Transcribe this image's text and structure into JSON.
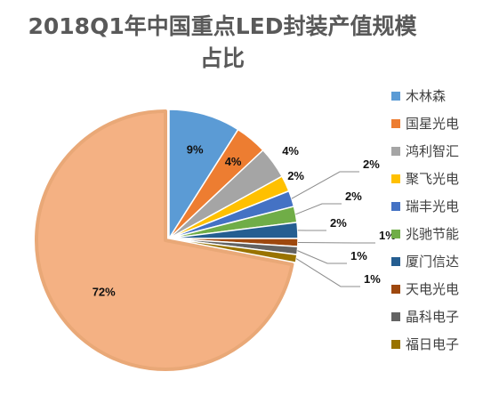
{
  "chart_data": {
    "type": "pie",
    "title": "2018Q1年中国重点LED封装产值规模占比",
    "title_lines": [
      "2018Q1年中国重点LED封装产值规模",
      "占比"
    ],
    "unit": "%",
    "legend_position": "right",
    "slices": [
      {
        "name": "木林森",
        "value": 9,
        "label": "9%",
        "color": "#5B9BD5"
      },
      {
        "name": "国星光电",
        "value": 4,
        "label": "4%",
        "color": "#ED7D31"
      },
      {
        "name": "鸿利智汇",
        "value": 4,
        "label": "4%",
        "color": "#A5A5A5"
      },
      {
        "name": "聚飞光电",
        "value": 2,
        "label": "2%",
        "color": "#FFC000"
      },
      {
        "name": "瑞丰光电",
        "value": 2,
        "label": "2%",
        "color": "#4472C4"
      },
      {
        "name": "兆驰节能",
        "value": 2,
        "label": "2%",
        "color": "#70AD47"
      },
      {
        "name": "厦门信达",
        "value": 2,
        "label": "2%",
        "color": "#255E91"
      },
      {
        "name": "天电光电",
        "value": 1,
        "label": "1%",
        "color": "#9E480E"
      },
      {
        "name": "晶科电子",
        "value": 1,
        "label": "1%",
        "color": "#636363"
      },
      {
        "name": "福日电子",
        "value": 1,
        "label": "1%",
        "color": "#997300"
      },
      {
        "name": "",
        "value": 72,
        "label": "72%",
        "color": "#F4B183"
      }
    ]
  }
}
